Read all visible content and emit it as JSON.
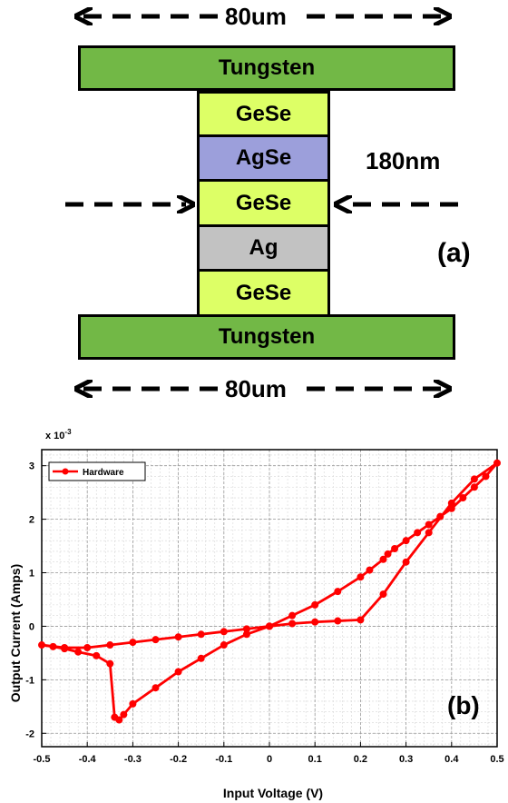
{
  "diagram": {
    "top_width_label": "80um",
    "bottom_width_label": "80um",
    "thickness_label": "180nm",
    "panel_label": "(a)",
    "layers": [
      {
        "name": "Tungsten",
        "kind": "tungsten"
      },
      {
        "name": "GeSe",
        "kind": "gese"
      },
      {
        "name": "AgSe",
        "kind": "agse"
      },
      {
        "name": "GeSe",
        "kind": "gese"
      },
      {
        "name": "Ag",
        "kind": "ag"
      },
      {
        "name": "GeSe",
        "kind": "gese"
      },
      {
        "name": "Tungsten",
        "kind": "tungsten"
      }
    ],
    "colors": {
      "tungsten": "#72b846",
      "gese": "#ddff66",
      "agse": "#9c9fdb",
      "ag": "#c2c2c2"
    }
  },
  "chart_data": {
    "type": "line",
    "panel_label": "(b)",
    "xlabel": "Input Voltage (V)",
    "ylabel": "Output Current (Amps)",
    "y_multiplier": "x 10",
    "y_exponent": "-3",
    "xlim": [
      -0.5,
      0.5
    ],
    "ylim": [
      -2.25,
      3.3
    ],
    "x_ticks": [
      -0.5,
      -0.4,
      -0.3,
      -0.2,
      -0.1,
      0,
      0.1,
      0.2,
      0.3,
      0.4,
      0.5
    ],
    "y_ticks": [
      -2,
      -1,
      0,
      1,
      2,
      3
    ],
    "grid": true,
    "legend_position": "top-left",
    "series": [
      {
        "name": "Hardware",
        "color": "#ff0000",
        "x": [
          0,
          0.05,
          0.1,
          0.15,
          0.2,
          0.25,
          0.3,
          0.35,
          0.4,
          0.45,
          0.5,
          0.475,
          0.45,
          0.425,
          0.4,
          0.375,
          0.35,
          0.325,
          0.3,
          0.275,
          0.26,
          0.25,
          0.22,
          0.2,
          0.15,
          0.1,
          0.05,
          0,
          -0.05,
          -0.1,
          -0.15,
          -0.2,
          -0.25,
          -0.3,
          -0.35,
          -0.4,
          -0.45,
          -0.5,
          -0.475,
          -0.45,
          -0.42,
          -0.38,
          -0.35,
          -0.34,
          -0.33,
          -0.32,
          -0.3,
          -0.25,
          -0.2,
          -0.15,
          -0.1,
          -0.05,
          0
        ],
        "y": [
          0,
          0.05,
          0.08,
          0.1,
          0.12,
          0.6,
          1.2,
          1.75,
          2.3,
          2.75,
          3.05,
          2.8,
          2.6,
          2.4,
          2.2,
          2.05,
          1.9,
          1.75,
          1.6,
          1.45,
          1.35,
          1.25,
          1.05,
          0.92,
          0.65,
          0.4,
          0.2,
          0,
          -0.05,
          -0.1,
          -0.15,
          -0.2,
          -0.25,
          -0.3,
          -0.35,
          -0.4,
          -0.4,
          -0.35,
          -0.38,
          -0.42,
          -0.48,
          -0.55,
          -0.7,
          -1.7,
          -1.75,
          -1.65,
          -1.45,
          -1.15,
          -0.85,
          -0.6,
          -0.35,
          -0.15,
          0
        ]
      }
    ]
  }
}
